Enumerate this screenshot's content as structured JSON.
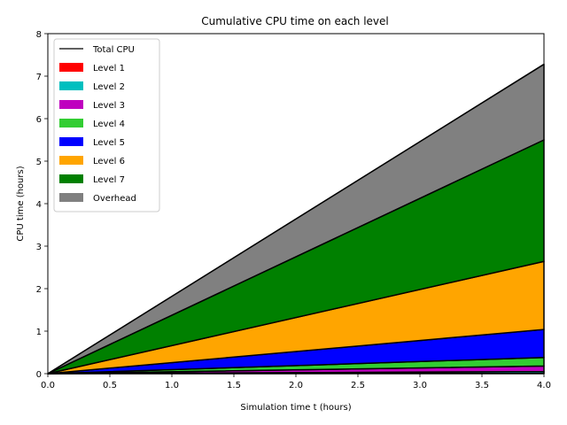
{
  "chart_data": {
    "type": "area",
    "title": "Cumulative CPU time on each level",
    "xlabel": "Simulation time t (hours)",
    "ylabel": "CPU time (hours)",
    "xlim": [
      0,
      4
    ],
    "ylim": [
      0,
      8
    ],
    "xticks": [
      "0.0",
      "0.5",
      "1.0",
      "1.5",
      "2.0",
      "2.5",
      "3.0",
      "3.5",
      "4.0"
    ],
    "yticks": [
      "0",
      "1",
      "2",
      "3",
      "4",
      "5",
      "6",
      "7",
      "8"
    ],
    "grid": false,
    "legend_position": "top-left",
    "stacked": true,
    "x": [
      0,
      4
    ],
    "series": [
      {
        "name": "Level 1",
        "color": "#ff0000",
        "values": [
          0,
          0.01
        ]
      },
      {
        "name": "Level 2",
        "color": "#00bfbf",
        "values": [
          0,
          0.04
        ]
      },
      {
        "name": "Level 3",
        "color": "#bf00bf",
        "values": [
          0,
          0.13
        ]
      },
      {
        "name": "Level 4",
        "color": "#32cd32",
        "values": [
          0,
          0.2
        ]
      },
      {
        "name": "Level 5",
        "color": "#0000ff",
        "values": [
          0,
          0.66
        ]
      },
      {
        "name": "Level 6",
        "color": "#ffa500",
        "values": [
          0,
          1.6
        ]
      },
      {
        "name": "Level 7",
        "color": "#008000",
        "values": [
          0,
          2.86
        ]
      },
      {
        "name": "Overhead",
        "color": "#808080",
        "values": [
          0,
          1.78
        ]
      }
    ],
    "total_line": {
      "name": "Total CPU",
      "color": "#000000",
      "values": [
        0,
        7.28
      ]
    }
  }
}
